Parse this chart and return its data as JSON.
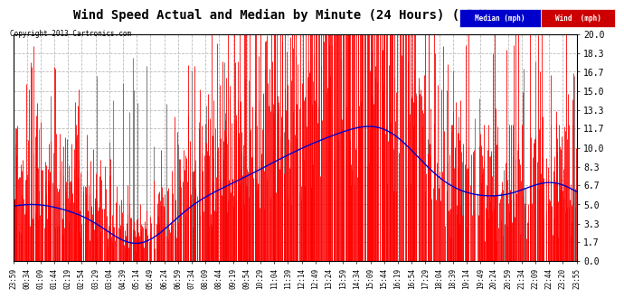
{
  "title": "Wind Speed Actual and Median by Minute (24 Hours) (Old) 20130501",
  "copyright": "Copyright 2013 Cartronics.com",
  "yticks": [
    0.0,
    1.7,
    3.3,
    5.0,
    6.7,
    8.3,
    10.0,
    11.7,
    13.3,
    15.0,
    16.7,
    18.3,
    20.0
  ],
  "ylim": [
    0.0,
    20.0
  ],
  "background_color": "#ffffff",
  "grid_color": "#bbbbbb",
  "wind_color": "#ff0000",
  "median_color": "#0000cc",
  "title_fontsize": 10,
  "x_tick_labels": [
    "23:59",
    "00:34",
    "01:09",
    "01:44",
    "02:19",
    "02:54",
    "03:29",
    "03:04",
    "04:39",
    "05:14",
    "05:49",
    "06:24",
    "06:59",
    "07:34",
    "08:09",
    "08:44",
    "09:19",
    "09:54",
    "10:29",
    "11:04",
    "11:39",
    "12:14",
    "12:49",
    "13:24",
    "13:59",
    "14:34",
    "15:09",
    "15:44",
    "16:19",
    "16:54",
    "17:29",
    "18:04",
    "18:39",
    "19:14",
    "19:49",
    "20:24",
    "20:59",
    "21:34",
    "22:09",
    "22:44",
    "23:20",
    "23:55"
  ]
}
